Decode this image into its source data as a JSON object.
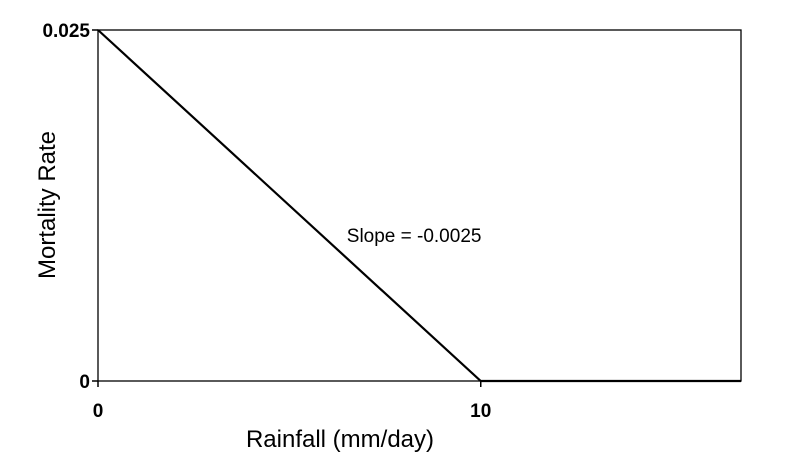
{
  "chart_data": {
    "type": "line",
    "title": "",
    "xlabel": "Rainfall (mm/day)",
    "ylabel": "Mortality Rate",
    "xlim": [
      0,
      16.8
    ],
    "ylim": [
      0,
      0.025
    ],
    "x_ticks": [
      {
        "value": 0,
        "label": "0"
      },
      {
        "value": 10,
        "label": "10"
      }
    ],
    "y_ticks": [
      {
        "value": 0,
        "label": "0"
      },
      {
        "value": 0.025,
        "label": "0.025"
      }
    ],
    "series": [
      {
        "color": "#000000",
        "points": [
          {
            "x": 0,
            "y": 0.025
          },
          {
            "x": 10,
            "y": 0
          },
          {
            "x": 16.8,
            "y": 0
          }
        ]
      }
    ],
    "annotations": [
      {
        "text": "Slope = -0.0025",
        "x": 6.5,
        "y": 0.0099
      }
    ],
    "grid": false,
    "legend": "none"
  }
}
